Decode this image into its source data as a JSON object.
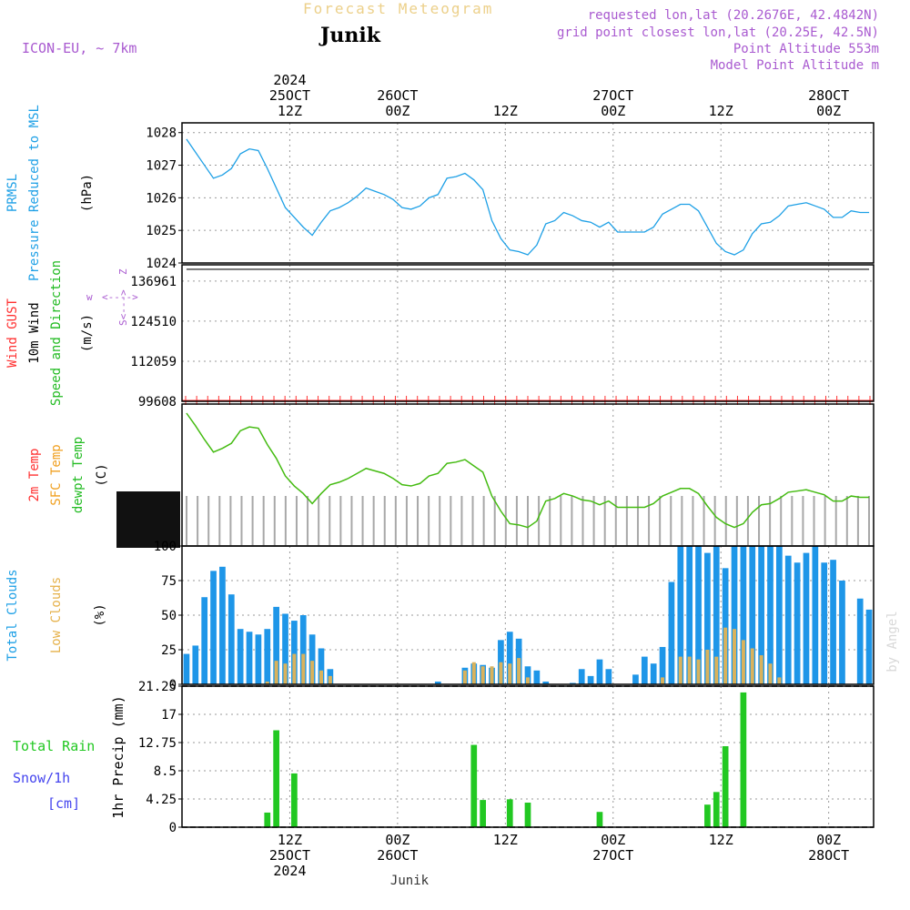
{
  "header": {
    "subtitle": "Forecast Meteogram",
    "location": "Junik",
    "model": "ICON-EU, ~ 7km",
    "requested": "requested lon,lat (20.2676E, 42.4842N)",
    "grid_point": "grid point closest lon,lat (20.25E, 42.5N)",
    "point_altitude": "Point Altitude 553m",
    "model_altitude": "Model Point Altitude m"
  },
  "footer": {
    "location": "Junik"
  },
  "watermark": "by Angel",
  "time_axis": {
    "top_labels": [
      {
        "t": 12,
        "lines": [
          "2024",
          "25OCT",
          "12Z"
        ]
      },
      {
        "t": 24,
        "lines": [
          "26OCT",
          "00Z"
        ]
      },
      {
        "t": 36,
        "lines": [
          "12Z"
        ]
      },
      {
        "t": 48,
        "lines": [
          "27OCT",
          "00Z"
        ]
      },
      {
        "t": 60,
        "lines": [
          "12Z"
        ]
      },
      {
        "t": 72,
        "lines": [
          "28OCT",
          "00Z"
        ]
      }
    ],
    "bottom_labels": [
      {
        "t": 12,
        "lines": [
          "12Z",
          "25OCT",
          "2024"
        ]
      },
      {
        "t": 24,
        "lines": [
          "00Z",
          "26OCT"
        ]
      },
      {
        "t": 36,
        "lines": [
          "12Z"
        ]
      },
      {
        "t": 48,
        "lines": [
          "00Z",
          "27OCT"
        ]
      },
      {
        "t": 60,
        "lines": [
          "12Z"
        ]
      },
      {
        "t": 72,
        "lines": [
          "00Z",
          "28OCT"
        ]
      }
    ]
  },
  "chart_data": [
    {
      "type": "line",
      "panel": "pressure",
      "side_labels": [
        {
          "text": "PRMSL",
          "color": "#1ea0e6"
        },
        {
          "text": "Pressure Reduced to MSL",
          "color": "#1ea0e6"
        },
        {
          "text": "(hPa)",
          "color": "#000000"
        }
      ],
      "ylim": [
        1024,
        1028.3
      ],
      "y_ticks": [
        1024,
        1025,
        1026,
        1027,
        1028
      ],
      "grid": true,
      "series": [
        {
          "color": "#1ea0e6",
          "x": [
            0.5,
            1.5,
            2.5,
            3.5,
            4.5,
            5.5,
            6.5,
            7.5,
            8.5,
            9.5,
            10.5,
            11.5,
            12.5,
            13.5,
            14.5,
            15.5,
            16.5,
            17.5,
            18.5,
            19.5,
            20.5,
            21.5,
            22.5,
            23.5,
            24.5,
            25.5,
            26.5,
            27.5,
            28.5,
            29.5,
            30.5,
            31.5,
            32.5,
            33.5,
            34.5,
            35.5,
            36.5,
            37.5,
            38.5,
            39.5,
            40.5,
            41.5,
            42.5,
            43.5,
            44.5,
            45.5,
            46.5,
            47.5,
            48.5,
            49.5,
            50.5,
            51.5,
            52.5,
            53.5,
            54.5,
            55.5,
            56.5,
            57.5,
            58.5,
            59.5,
            60.5,
            61.5,
            62.5,
            63.5,
            64.5,
            65.5,
            66.5,
            67.5,
            68.5,
            69.5,
            70.5,
            71.5,
            72.5,
            73.5,
            74.5,
            75.5,
            76.5
          ],
          "y": [
            1027.8,
            1027.4,
            1027.0,
            1026.6,
            1026.7,
            1026.9,
            1027.35,
            1027.5,
            1027.45,
            1026.9,
            1026.3,
            1025.7,
            1025.4,
            1025.1,
            1024.85,
            1025.25,
            1025.6,
            1025.7,
            1025.85,
            1026.05,
            1026.3,
            1026.2,
            1026.1,
            1025.95,
            1025.7,
            1025.65,
            1025.75,
            1026.0,
            1026.1,
            1026.6,
            1026.65,
            1026.75,
            1026.55,
            1026.25,
            1025.3,
            1024.75,
            1024.4,
            1024.35,
            1024.25,
            1024.55,
            1025.2,
            1025.3,
            1025.55,
            1025.45,
            1025.3,
            1025.25,
            1025.1,
            1025.25,
            1024.95,
            1024.95,
            1024.95,
            1024.95,
            1025.1,
            1025.5,
            1025.65,
            1025.8,
            1025.8,
            1025.6,
            1025.1,
            1024.6,
            1024.35,
            1024.25,
            1024.4,
            1024.9,
            1025.2,
            1025.25,
            1025.45,
            1025.75,
            1025.8,
            1025.85,
            1025.75,
            1025.65,
            1025.4,
            1025.4,
            1025.6,
            1025.55,
            1025.55
          ]
        }
      ]
    },
    {
      "type": "line",
      "panel": "wind",
      "side_labels": [
        {
          "text": "Wind GUST",
          "color": "#ff3030"
        },
        {
          "text": "10m Wind",
          "color": "#000000"
        },
        {
          "text": "Speed and Direction",
          "color": "#22bb22"
        },
        {
          "text": "(m/s)",
          "color": "#000000"
        }
      ],
      "direction_key": {
        "w": "w",
        "arrow": "<---->",
        "z": "Z",
        "s": "S<--->"
      },
      "ylim": [
        99608,
        142000
      ],
      "y_ticks": [
        99608,
        112059,
        124510,
        136961
      ],
      "grid": true,
      "flat_line_y": 140600,
      "gust_marker_y": 99900,
      "gust_marker_count": 63
    },
    {
      "type": "line",
      "panel": "temperature",
      "side_labels": [
        {
          "text": "2m Temp",
          "color": "#ff3030"
        },
        {
          "text": "SFC Temp",
          "color": "#f0a020"
        },
        {
          "text": "dewpt Temp",
          "color": "#22bb22"
        },
        {
          "text": "(C)",
          "color": "#000000"
        }
      ],
      "grid": false,
      "hatch_count": 63,
      "series": [
        {
          "color": "#44bb11",
          "x": [
            0.5,
            1.5,
            2.5,
            3.5,
            4.5,
            5.5,
            6.5,
            7.5,
            8.5,
            9.5,
            10.5,
            11.5,
            12.5,
            13.5,
            14.5,
            15.5,
            16.5,
            17.5,
            18.5,
            19.5,
            20.5,
            21.5,
            22.5,
            23.5,
            24.5,
            25.5,
            26.5,
            27.5,
            28.5,
            29.5,
            30.5,
            31.5,
            32.5,
            33.5,
            34.5,
            35.5,
            36.5,
            37.5,
            38.5,
            39.5,
            40.5,
            41.5,
            42.5,
            43.5,
            44.5,
            45.5,
            46.5,
            47.5,
            48.5,
            49.5,
            50.5,
            51.5,
            52.5,
            53.5,
            54.5,
            55.5,
            56.5,
            57.5,
            58.5,
            59.5,
            60.5,
            61.5,
            62.5,
            63.5,
            64.5,
            65.5,
            66.5,
            67.5,
            68.5,
            69.5,
            70.5,
            71.5,
            72.5,
            73.5,
            74.5,
            75.5,
            76.5
          ],
          "y": [
            100,
            90,
            79,
            69,
            72,
            76,
            86,
            89,
            88,
            75,
            64,
            50,
            42,
            36,
            28,
            36,
            43,
            45,
            48,
            52,
            56,
            54,
            52,
            48,
            43,
            42,
            44,
            50,
            52,
            60,
            61,
            63,
            58,
            53,
            34,
            22,
            12,
            11,
            9,
            14,
            30,
            32,
            36,
            34,
            31,
            30,
            27,
            30,
            25,
            25,
            25,
            25,
            28,
            34,
            37,
            40,
            40,
            36,
            26,
            17,
            12,
            9,
            12,
            21,
            27,
            28,
            32,
            37,
            38,
            39,
            37,
            35,
            30,
            30,
            34,
            33,
            33
          ]
        }
      ]
    },
    {
      "type": "bar",
      "panel": "clouds",
      "side_labels": [
        {
          "text": "Total Clouds",
          "color": "#1ea0e6"
        },
        {
          "text": "Low Clouds",
          "color": "#e6b24c"
        },
        {
          "text": "(%)",
          "color": "#000000"
        }
      ],
      "ylim": [
        0,
        100
      ],
      "y_ticks": [
        0,
        25,
        50,
        75,
        100
      ],
      "grid": true,
      "series": [
        {
          "name": "Total Clouds",
          "color": "#1e96e8",
          "x": [
            0,
            1,
            2,
            3,
            4,
            5,
            6,
            7,
            8,
            9,
            10,
            11,
            12,
            13,
            14,
            15,
            16,
            17,
            18,
            19,
            20,
            21,
            22,
            23,
            24,
            25,
            26,
            27,
            28,
            29,
            30,
            31,
            32,
            33,
            34,
            35,
            36,
            37,
            38,
            39,
            40,
            41,
            42,
            43,
            44,
            45,
            46,
            47,
            48,
            49,
            50,
            51,
            52,
            53,
            54,
            55,
            56,
            57,
            58,
            59,
            60,
            61,
            62,
            63,
            64,
            65,
            66,
            67,
            68,
            69,
            70,
            71,
            72,
            73,
            74,
            75,
            76
          ],
          "values": [
            22,
            28,
            63,
            82,
            85,
            65,
            40,
            38,
            36,
            40,
            56,
            51,
            46,
            50,
            36,
            26,
            11,
            0,
            0,
            0,
            0,
            0,
            0,
            0,
            0,
            0,
            0,
            0,
            2,
            0,
            0,
            12,
            15,
            14,
            12,
            32,
            38,
            33,
            13,
            10,
            2,
            0,
            0,
            1,
            11,
            6,
            18,
            11,
            0,
            0,
            7,
            20,
            15,
            27,
            74,
            100,
            100,
            100,
            95,
            100,
            84,
            100,
            100,
            100,
            100,
            100,
            100,
            93,
            88,
            95,
            100,
            88,
            90,
            75,
            0,
            62,
            54
          ]
        },
        {
          "name": "Low Clouds",
          "color": "#d9b25c",
          "x": [
            0,
            1,
            2,
            3,
            4,
            5,
            6,
            7,
            8,
            9,
            10,
            11,
            12,
            13,
            14,
            15,
            16,
            17,
            18,
            19,
            20,
            21,
            22,
            23,
            24,
            25,
            26,
            27,
            28,
            29,
            30,
            31,
            32,
            33,
            34,
            35,
            36,
            37,
            38,
            39,
            40,
            41,
            42,
            43,
            44,
            45,
            46,
            47,
            48,
            49,
            50,
            51,
            52,
            53,
            54,
            55,
            56,
            57,
            58,
            59,
            60,
            61,
            62,
            63,
            64,
            65,
            66,
            67,
            68,
            69,
            70,
            71,
            72,
            73,
            74,
            75,
            76
          ],
          "values": [
            0,
            0,
            0,
            0,
            0,
            0,
            0,
            0,
            0,
            2,
            17,
            15,
            22,
            22,
            17,
            10,
            6,
            0,
            0,
            0,
            0,
            0,
            0,
            0,
            0,
            0,
            0,
            0,
            0,
            0,
            0,
            10,
            16,
            13,
            13,
            16,
            15,
            19,
            5,
            0,
            0,
            0,
            0,
            0,
            0,
            0,
            0,
            0,
            0,
            0,
            0,
            0,
            0,
            5,
            0,
            20,
            20,
            18,
            25,
            20,
            41,
            40,
            32,
            26,
            21,
            15,
            5,
            0,
            0,
            0,
            0,
            0,
            0,
            0,
            0,
            0,
            0
          ]
        }
      ]
    },
    {
      "type": "bar",
      "panel": "precipitation",
      "side_labels": [
        {
          "text": "Total  Rain",
          "color": "#22c822"
        },
        {
          "text": "Snow/1h",
          "color": "#4444ee"
        },
        {
          "text": "[cm]",
          "color": "#4444ee"
        }
      ],
      "ylabel": "1hr Precip (mm)",
      "ylim": [
        0,
        21.25
      ],
      "y_ticks": [
        0,
        4.25,
        8.5,
        12.75,
        17,
        21.25
      ],
      "y_tick_labels": [
        "0",
        "4.25",
        "8.5",
        "12.75",
        "17",
        "21.25"
      ],
      "grid": true,
      "series": [
        {
          "name": "Total Rain",
          "color": "#22c822",
          "x": [
            9,
            10,
            12,
            32,
            33,
            36,
            38,
            46,
            58,
            59,
            60,
            62
          ],
          "values": [
            2.2,
            14.6,
            8.1,
            12.4,
            4.1,
            4.2,
            3.7,
            2.3,
            3.4,
            5.3,
            12.2,
            20.3
          ]
        }
      ]
    }
  ]
}
